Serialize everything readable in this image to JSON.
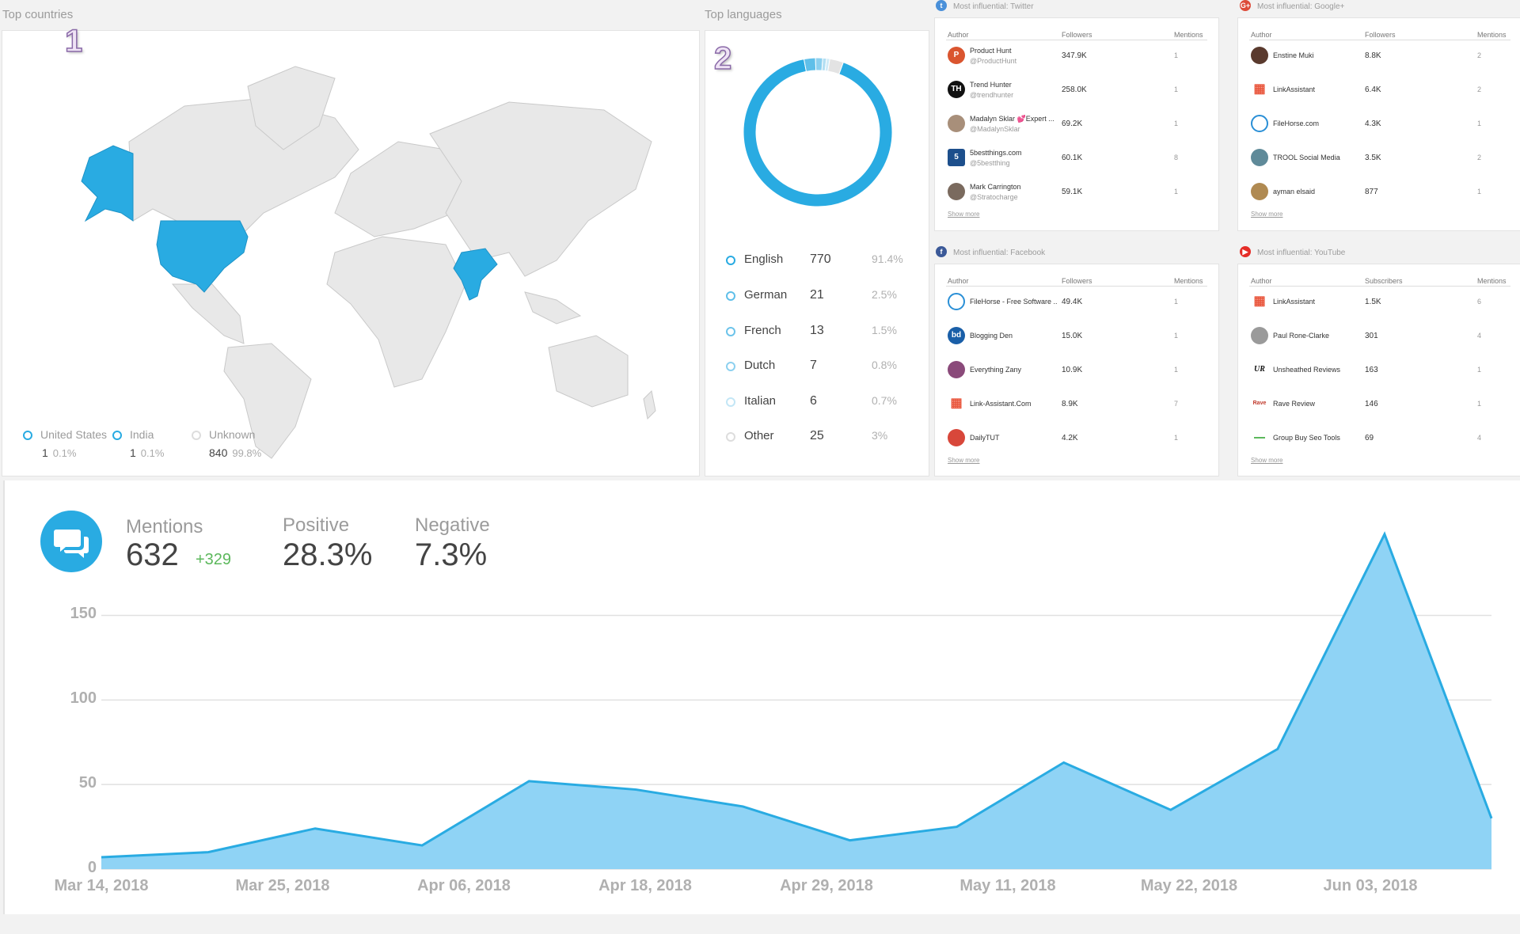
{
  "countries": {
    "title": "Top countries",
    "badge": "1",
    "highlight_color": "#29abe2",
    "legend": [
      {
        "name": "United States",
        "count": "1",
        "pct": "0.1%"
      },
      {
        "name": "India",
        "count": "1",
        "pct": "0.1%"
      },
      {
        "name": "Unknown",
        "count": "840",
        "pct": "99.8%"
      }
    ]
  },
  "languages": {
    "title": "Top languages",
    "badge": "2",
    "rows": [
      {
        "name": "English",
        "count": "770",
        "pct": "91.4%"
      },
      {
        "name": "German",
        "count": "21",
        "pct": "2.5%"
      },
      {
        "name": "French",
        "count": "13",
        "pct": "1.5%"
      },
      {
        "name": "Dutch",
        "count": "7",
        "pct": "0.8%"
      },
      {
        "name": "Italian",
        "count": "6",
        "pct": "0.7%"
      },
      {
        "name": "Other",
        "count": "25",
        "pct": "3%"
      }
    ]
  },
  "influencers": {
    "twitter": {
      "title": "Most influential: Twitter",
      "icon": "twitter-icon",
      "cols": [
        "Author",
        "Followers",
        "Mentions"
      ],
      "rows": [
        {
          "name": "Product Hunt",
          "handle": "@ProductHunt",
          "followers": "347.9K",
          "mentions": "1",
          "avatar": "P",
          "color": "#da552f"
        },
        {
          "name": "Trend Hunter",
          "handle": "@trendhunter",
          "followers": "258.0K",
          "mentions": "1",
          "avatar": "TH",
          "color": "#111111"
        },
        {
          "name": "Madalyn Sklar 💕Expert ...",
          "handle": "@MadalynSklar",
          "followers": "69.2K",
          "mentions": "1",
          "avatar": "",
          "color": "#a88f7a"
        },
        {
          "name": "5bestthings.com",
          "handle": "@5bestthing",
          "followers": "60.1K",
          "mentions": "8",
          "avatar": "5",
          "color": "#1d4f8c"
        },
        {
          "name": "Mark Carrington",
          "handle": "@Stratocharge",
          "followers": "59.1K",
          "mentions": "1",
          "avatar": "",
          "color": "#7a6a5e"
        }
      ],
      "show_more": "Show more"
    },
    "googleplus": {
      "title": "Most influential: Google+",
      "icon": "google-plus-icon",
      "cols": [
        "Author",
        "Followers",
        "Mentions"
      ],
      "rows": [
        {
          "name": "Enstine Muki",
          "handle": "",
          "followers": "8.8K",
          "mentions": "2",
          "avatar": "",
          "color": "#5a3a2e"
        },
        {
          "name": "LinkAssistant",
          "handle": "",
          "followers": "6.4K",
          "mentions": "2",
          "avatar": "▦",
          "color": "#e9543a"
        },
        {
          "name": "FileHorse.com",
          "handle": "",
          "followers": "4.3K",
          "mentions": "1",
          "avatar": "",
          "color": "#2a8fd6"
        },
        {
          "name": "TROOL Social Media",
          "handle": "",
          "followers": "3.5K",
          "mentions": "2",
          "avatar": "",
          "color": "#5f8a99"
        },
        {
          "name": "ayman elsaid",
          "handle": "",
          "followers": "877",
          "mentions": "1",
          "avatar": "",
          "color": "#b08a52"
        }
      ],
      "show_more": "Show more"
    },
    "facebook": {
      "title": "Most influential: Facebook",
      "icon": "facebook-icon",
      "cols": [
        "Author",
        "Followers",
        "Mentions"
      ],
      "rows": [
        {
          "name": "FileHorse - Free Software ...",
          "handle": "",
          "followers": "49.4K",
          "mentions": "1",
          "avatar": "",
          "color": "#2a8fd6"
        },
        {
          "name": "Blogging Den",
          "handle": "",
          "followers": "15.0K",
          "mentions": "1",
          "avatar": "bd",
          "color": "#1a5fa8"
        },
        {
          "name": "Everything Zany",
          "handle": "",
          "followers": "10.9K",
          "mentions": "1",
          "avatar": "",
          "color": "#8a4a7a"
        },
        {
          "name": "Link-Assistant.Com",
          "handle": "",
          "followers": "8.9K",
          "mentions": "7",
          "avatar": "▦",
          "color": "#e9543a"
        },
        {
          "name": "DailyTUT",
          "handle": "",
          "followers": "4.2K",
          "mentions": "1",
          "avatar": "",
          "color": "#d8473a"
        }
      ],
      "show_more": "Show more"
    },
    "youtube": {
      "title": "Most influential: YouTube",
      "icon": "youtube-icon",
      "cols": [
        "Author",
        "Subscribers",
        "Mentions"
      ],
      "rows": [
        {
          "name": "LinkAssistant",
          "handle": "",
          "followers": "1.5K",
          "mentions": "6",
          "avatar": "▦",
          "color": "#e9543a"
        },
        {
          "name": "Paul Rone-Clarke",
          "handle": "",
          "followers": "301",
          "mentions": "4",
          "avatar": "",
          "color": "#9a9a9a"
        },
        {
          "name": "Unsheathed Reviews",
          "handle": "",
          "followers": "163",
          "mentions": "1",
          "avatar": "UR",
          "color": "#ffffff"
        },
        {
          "name": "Rave Review",
          "handle": "",
          "followers": "146",
          "mentions": "1",
          "avatar": "Rave",
          "color": "#ffffff"
        },
        {
          "name": "Group Buy Seo Tools",
          "handle": "",
          "followers": "69",
          "mentions": "4",
          "avatar": "",
          "color": "#ffffff"
        }
      ],
      "show_more": "Show more"
    }
  },
  "summary": {
    "mentions_label": "Mentions",
    "mentions_value": "632",
    "mentions_delta": "+329",
    "positive_label": "Positive",
    "positive_value": "28.3%",
    "negative_label": "Negative",
    "negative_value": "7.3%"
  },
  "chart_data": [
    {
      "type": "pie",
      "categories": [
        "English",
        "German",
        "French",
        "Dutch",
        "Italian",
        "Other"
      ],
      "values": [
        770,
        21,
        13,
        7,
        6,
        25
      ],
      "colors": [
        "#29abe2",
        "#5fbfe9",
        "#8cd0ef",
        "#b3dff3",
        "#d0ebf7",
        "#e3e3e3"
      ]
    },
    {
      "type": "area",
      "x": [
        "Mar 10, 2018",
        "Mar 17, 2018",
        "Mar 24, 2018",
        "Mar 31, 2018",
        "Apr 07, 2018",
        "Apr 14, 2018",
        "Apr 21, 2018",
        "Apr 28, 2018",
        "May 05, 2018",
        "May 12, 2018",
        "May 19, 2018",
        "May 26, 2018",
        "Jun 02, 2018",
        "Jun 09, 2018"
      ],
      "values": [
        7,
        10,
        24,
        14,
        52,
        47,
        37,
        17,
        25,
        63,
        35,
        71,
        198,
        30
      ],
      "xticks": [
        "Mar 14, 2018",
        "Mar 25, 2018",
        "Apr 06, 2018",
        "Apr 18, 2018",
        "Apr 29, 2018",
        "May 11, 2018",
        "May 22, 2018",
        "Jun 03, 2018"
      ],
      "yticks": [
        "0",
        "50",
        "100",
        "150"
      ],
      "ylim": [
        0,
        200
      ],
      "color": "#29abe2"
    }
  ]
}
